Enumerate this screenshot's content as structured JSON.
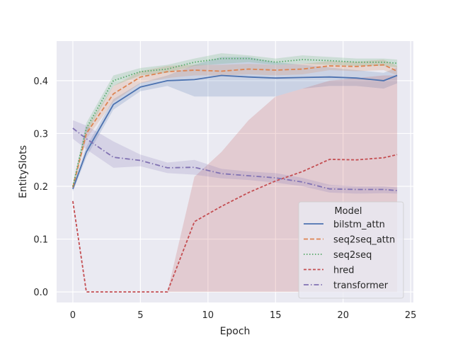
{
  "chart_data": {
    "type": "line",
    "title": "",
    "xlabel": "Epoch",
    "ylabel": "EntitySlots",
    "xlim": [
      -1.2,
      25.2
    ],
    "ylim": [
      -0.02,
      0.475
    ],
    "xticks": [
      0,
      5,
      10,
      15,
      20,
      25
    ],
    "yticks": [
      0.0,
      0.1,
      0.2,
      0.3,
      0.4
    ],
    "ytick_labels": [
      "0.0",
      "0.1",
      "0.2",
      "0.3",
      "0.4"
    ],
    "grid": true,
    "legend_title": "Model",
    "legend_position": "lower-right",
    "x": [
      0,
      1,
      3,
      5,
      7,
      9,
      11,
      13,
      15,
      17,
      19,
      21,
      23,
      24
    ],
    "series": [
      {
        "name": "bilstm_attn",
        "color": "#4c72b0",
        "dash": "solid",
        "values": [
          0.195,
          0.265,
          0.355,
          0.388,
          0.4,
          0.402,
          0.41,
          0.407,
          0.405,
          0.406,
          0.407,
          0.405,
          0.4,
          0.41
        ],
        "lower": [
          0.19,
          0.255,
          0.345,
          0.38,
          0.39,
          0.37,
          0.37,
          0.37,
          0.37,
          0.385,
          0.39,
          0.39,
          0.385,
          0.395
        ],
        "upper": [
          0.2,
          0.275,
          0.365,
          0.396,
          0.41,
          0.43,
          0.445,
          0.445,
          0.435,
          0.43,
          0.425,
          0.42,
          0.415,
          0.425
        ]
      },
      {
        "name": "seq2seq_attn",
        "color": "#dd8452",
        "dash": "dashed",
        "values": [
          0.198,
          0.3,
          0.375,
          0.407,
          0.417,
          0.42,
          0.418,
          0.422,
          0.42,
          0.422,
          0.428,
          0.427,
          0.43,
          0.418
        ],
        "lower": [
          0.192,
          0.29,
          0.36,
          0.395,
          0.405,
          0.41,
          0.41,
          0.412,
          0.41,
          0.412,
          0.42,
          0.418,
          0.42,
          0.41
        ],
        "upper": [
          0.204,
          0.31,
          0.39,
          0.418,
          0.428,
          0.43,
          0.43,
          0.432,
          0.43,
          0.432,
          0.437,
          0.436,
          0.44,
          0.428
        ]
      },
      {
        "name": "seq2seq",
        "color": "#55a868",
        "dash": "dotted",
        "values": [
          0.2,
          0.31,
          0.4,
          0.417,
          0.422,
          0.435,
          0.442,
          0.442,
          0.435,
          0.44,
          0.438,
          0.435,
          0.435,
          0.433
        ],
        "lower": [
          0.195,
          0.3,
          0.39,
          0.41,
          0.415,
          0.428,
          0.432,
          0.435,
          0.43,
          0.432,
          0.43,
          0.428,
          0.428,
          0.425
        ],
        "upper": [
          0.205,
          0.32,
          0.41,
          0.424,
          0.43,
          0.442,
          0.452,
          0.448,
          0.442,
          0.448,
          0.445,
          0.442,
          0.442,
          0.44
        ]
      },
      {
        "name": "hred",
        "color": "#c44e52",
        "dash": "dashed-short",
        "values": [
          0.172,
          0.0,
          0.0,
          0.0,
          0.0,
          0.133,
          0.162,
          0.188,
          0.21,
          0.228,
          0.251,
          0.25,
          0.254,
          0.26
        ],
        "lower": [
          0.172,
          0.0,
          0.0,
          0.0,
          0.0,
          0.0,
          0.0,
          0.0,
          0.0,
          0.0,
          0.0,
          0.0,
          0.0,
          0.0
        ],
        "upper": [
          0.172,
          0.0,
          0.0,
          0.0,
          0.0,
          0.218,
          0.265,
          0.325,
          0.37,
          0.385,
          0.4,
          0.405,
          0.41,
          0.41
        ]
      },
      {
        "name": "transformer",
        "color": "#8172b3",
        "dash": "dashdot",
        "values": [
          0.31,
          0.29,
          0.255,
          0.249,
          0.235,
          0.236,
          0.224,
          0.22,
          0.216,
          0.208,
          0.195,
          0.194,
          0.194,
          0.192
        ],
        "lower": [
          0.29,
          0.27,
          0.235,
          0.238,
          0.225,
          0.222,
          0.215,
          0.212,
          0.207,
          0.2,
          0.188,
          0.186,
          0.187,
          0.186
        ],
        "upper": [
          0.325,
          0.315,
          0.285,
          0.26,
          0.245,
          0.25,
          0.233,
          0.228,
          0.225,
          0.216,
          0.203,
          0.2,
          0.2,
          0.198
        ]
      }
    ]
  }
}
